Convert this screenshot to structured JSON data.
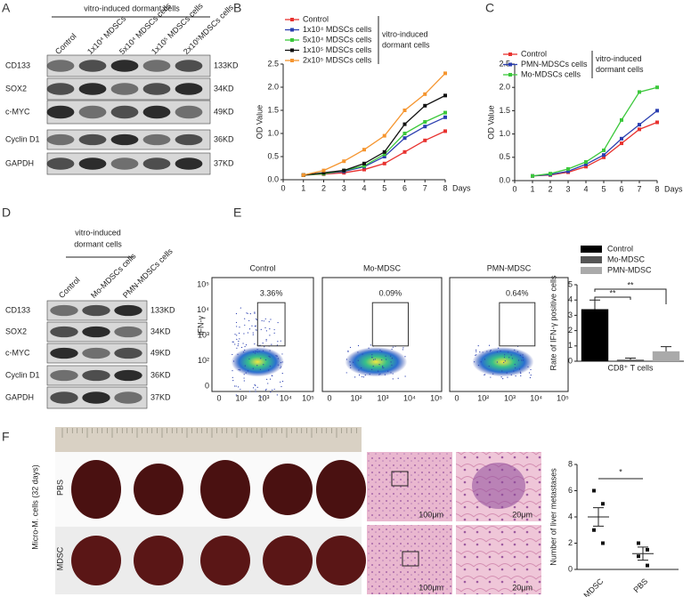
{
  "panel_labels": [
    "A",
    "B",
    "C",
    "D",
    "E",
    "F"
  ],
  "blot_a": {
    "header": "vitro-induced dormant cells",
    "lanes": [
      "Control",
      "1x10⁴ MDSCs",
      "5x10⁴ MDSCs cells",
      "1x10⁵ MDSCs cells",
      "2x10⁵MDSCs cells"
    ],
    "rows": [
      "CD133",
      "SOX2",
      "c-MYC",
      "Cyclin D1",
      "GAPDH"
    ],
    "sizes": [
      "133KD",
      "34KD",
      "49KD",
      "36KD",
      "37KD"
    ]
  },
  "blot_d": {
    "header_lines": [
      "vitro-induced",
      "dormant cells"
    ],
    "lanes": [
      "Control",
      "Mo-MDSCs cells",
      "PMN-MDSCs cells"
    ],
    "rows": [
      "CD133",
      "SOX2",
      "c-MYC",
      "Cyclin D1",
      "GAPDH"
    ],
    "sizes": [
      "133KD",
      "34KD",
      "49KD",
      "36KD",
      "37KD"
    ]
  },
  "flow": {
    "titles": [
      "Control",
      "Mo-MDSC",
      "PMN-MDSC"
    ],
    "percents": [
      "3.36%",
      "0.09%",
      "0.64%"
    ],
    "ylabel": "IFN-γ",
    "xticks": [
      "0",
      "10²",
      "10³",
      "10⁴",
      "10⁵"
    ],
    "yticks": [
      "0",
      "10²",
      "10³",
      "10⁴",
      "10⁵"
    ]
  },
  "photo": {
    "side_label": "Micro-M. cells (32 days)",
    "rows": [
      "PBS",
      "MDSC"
    ]
  },
  "histology": {
    "scales": [
      "100μm",
      "20μm",
      "100μm",
      "20μm"
    ]
  },
  "chart_data": [
    {
      "type": "line",
      "xlabel": "Days",
      "ylabel": "OD Value",
      "x": [
        1,
        2,
        3,
        4,
        5,
        6,
        7,
        8
      ],
      "xlim": [
        0,
        8
      ],
      "xticks": [
        0,
        1,
        2,
        3,
        4,
        5,
        6,
        7,
        8
      ],
      "ylim": [
        0,
        2.5
      ],
      "yticks": [
        {
          "value": 0,
          "label": "0.0"
        },
        0.5,
        {
          "value": 1,
          "label": "1.0"
        },
        1.5,
        {
          "value": 2,
          "label": "2.0"
        },
        2.5
      ],
      "legend_note": [
        "vitro-induced",
        "dormant cells"
      ],
      "series": [
        {
          "name": "Control",
          "color": "#e8322f",
          "values": [
            0.1,
            0.12,
            0.15,
            0.22,
            0.35,
            0.6,
            0.85,
            1.05
          ]
        },
        {
          "name": "1x10⁴ MDSCs cells",
          "color": "#2b3fb0",
          "values": [
            0.1,
            0.13,
            0.18,
            0.28,
            0.5,
            0.9,
            1.15,
            1.35
          ]
        },
        {
          "name": "5x10⁴ MDSCs cells",
          "color": "#3cc83c",
          "values": [
            0.1,
            0.13,
            0.2,
            0.3,
            0.55,
            1.0,
            1.25,
            1.45
          ]
        },
        {
          "name": "1x10⁵ MDSCs cells",
          "color": "#111111",
          "values": [
            0.1,
            0.15,
            0.2,
            0.35,
            0.6,
            1.2,
            1.6,
            1.82
          ]
        },
        {
          "name": "2x10⁵ MDSCs cells",
          "color": "#f5952f",
          "values": [
            0.1,
            0.2,
            0.4,
            0.65,
            0.95,
            1.5,
            1.85,
            2.3
          ]
        }
      ]
    },
    {
      "type": "line",
      "xlabel": "Days",
      "ylabel": "OD Value",
      "x": [
        1,
        2,
        3,
        4,
        5,
        6,
        7,
        8
      ],
      "xlim": [
        0,
        8
      ],
      "xticks": [
        0,
        1,
        2,
        3,
        4,
        5,
        6,
        7,
        8
      ],
      "ylim": [
        0,
        2.5
      ],
      "yticks": [
        {
          "value": 0,
          "label": "0.0"
        },
        0.5,
        {
          "value": 1,
          "label": "1.0"
        },
        1.5,
        {
          "value": 2,
          "label": "2.0"
        },
        2.5
      ],
      "legend_note": [
        "vitro-induced",
        "dormant cells"
      ],
      "series": [
        {
          "name": "Control",
          "color": "#e8322f",
          "values": [
            0.1,
            0.12,
            0.18,
            0.3,
            0.5,
            0.8,
            1.1,
            1.25
          ]
        },
        {
          "name": "PMN-MDSCs cells",
          "color": "#2b3fb0",
          "values": [
            0.1,
            0.13,
            0.2,
            0.35,
            0.55,
            0.9,
            1.2,
            1.5
          ]
        },
        {
          "name": "Mo-MDSCs cells",
          "color": "#3cc83c",
          "values": [
            0.1,
            0.15,
            0.25,
            0.4,
            0.65,
            1.3,
            1.9,
            2.0
          ]
        }
      ]
    },
    {
      "type": "bar",
      "xlabel": "CD8⁺ T cells",
      "ylabel": "Rate of IFN-γ positive cells",
      "categories": [
        "Control",
        "Mo-MDSC",
        "PMN-MDSC"
      ],
      "values": [
        3.4,
        0.1,
        0.65
      ],
      "errors": [
        0.6,
        0.1,
        0.3
      ],
      "colors": [
        "#000000",
        "#555555",
        "#aaaaaa"
      ],
      "ylim": [
        0,
        5
      ],
      "yticks": [
        0,
        1,
        2,
        3,
        4,
        5
      ],
      "annotations": [
        "**",
        "**"
      ]
    },
    {
      "type": "scatter",
      "ylabel": "Number of liver metastases",
      "categories": [
        "MDSC",
        "PBS"
      ],
      "points": [
        [
          6,
          5,
          3,
          2
        ],
        [
          2,
          1.5,
          1,
          0.3
        ]
      ],
      "means": [
        4,
        1.2
      ],
      "errors": [
        0.7,
        0.5
      ],
      "ylim": [
        0,
        8
      ],
      "yticks": [
        0,
        2,
        4,
        6,
        8
      ],
      "annotations": [
        "*"
      ]
    }
  ]
}
